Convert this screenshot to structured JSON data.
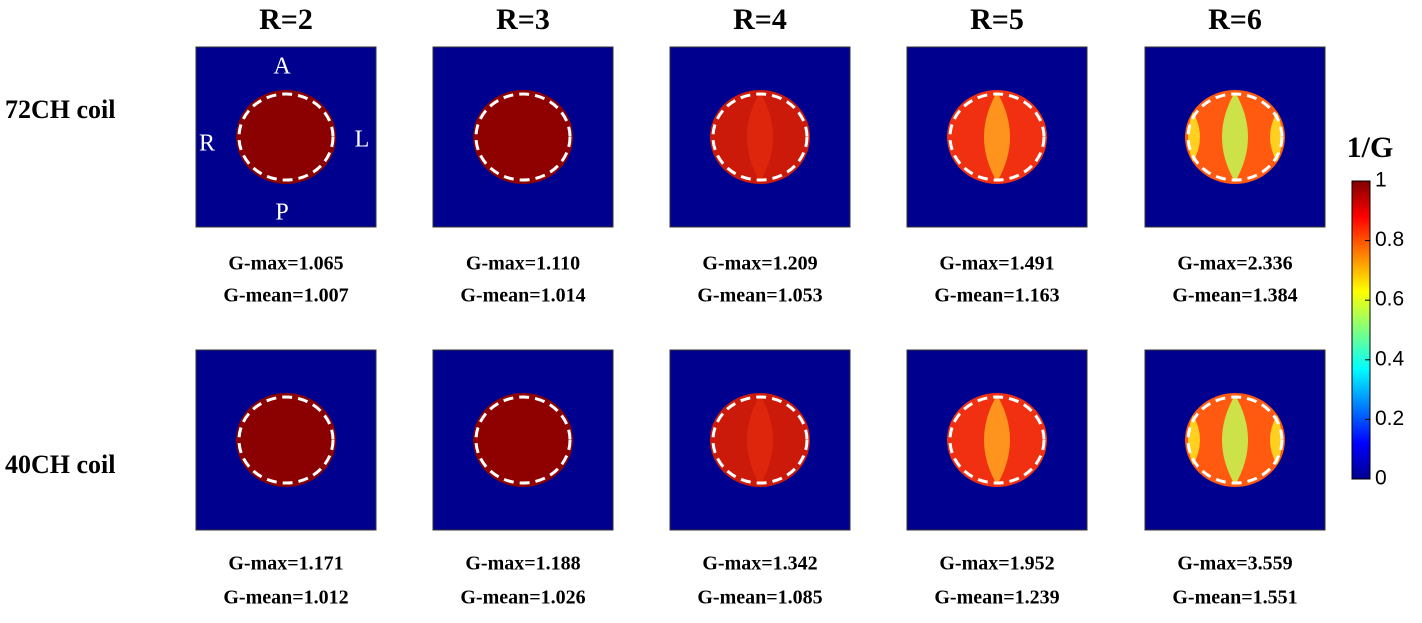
{
  "columns": [
    "R=2",
    "R=3",
    "R=4",
    "R=5",
    "R=6"
  ],
  "rows": [
    {
      "label": "72CH coil",
      "panels": [
        {
          "gmax": "G-max=1.065",
          "gmean": "G-mean=1.007"
        },
        {
          "gmax": "G-max=1.110",
          "gmean": "G-mean=1.014"
        },
        {
          "gmax": "G-max=1.209",
          "gmean": "G-mean=1.053"
        },
        {
          "gmax": "G-max=1.491",
          "gmean": "G-mean=1.163"
        },
        {
          "gmax": "G-max=2.336",
          "gmean": "G-mean=1.384"
        }
      ]
    },
    {
      "label": "40CH coil",
      "panels": [
        {
          "gmax": "G-max=1.171",
          "gmean": "G-mean=1.012"
        },
        {
          "gmax": "G-max=1.188",
          "gmean": "G-mean=1.026"
        },
        {
          "gmax": "G-max=1.342",
          "gmean": "G-mean=1.085"
        },
        {
          "gmax": "G-max=1.952",
          "gmean": "G-mean=1.239"
        },
        {
          "gmax": "G-max=3.559",
          "gmean": "G-mean=1.551"
        }
      ]
    }
  ],
  "orientation": {
    "anterior": "A",
    "posterior": "P",
    "right": "R",
    "left": "L"
  },
  "colorbar": {
    "title": "1/G",
    "lim": [
      0,
      1
    ],
    "ticks": [
      0,
      0.2,
      0.4,
      0.6,
      0.8,
      1
    ]
  }
}
